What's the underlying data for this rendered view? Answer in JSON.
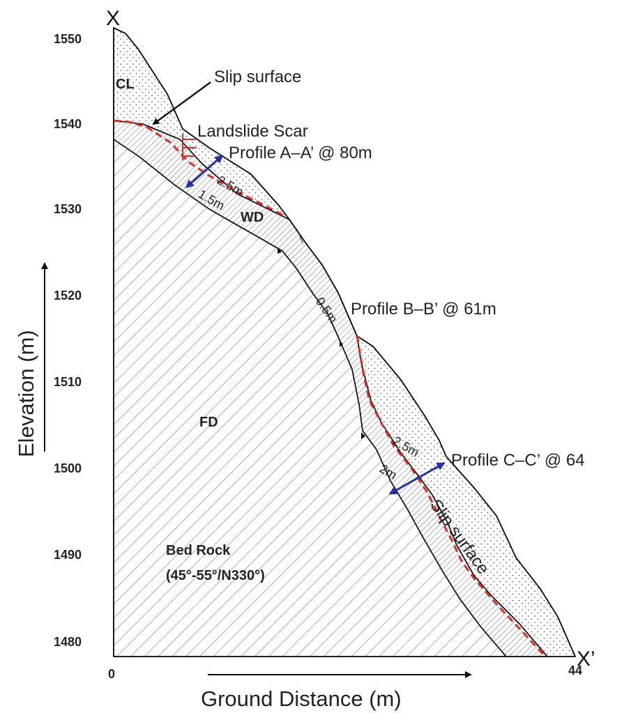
{
  "section": {
    "start_label": "X",
    "end_label": "X’",
    "x_axis_title": "Ground Distance (m)",
    "y_axis_title": "Elevation (m)",
    "x_start_tick": "0",
    "x_end_tick": "44",
    "y_ticks": [
      "1550",
      "1540",
      "1530",
      "1520",
      "1510",
      "1500",
      "1490",
      "1480"
    ]
  },
  "layers": {
    "colluvium": "CL",
    "weathered_zone": "WD",
    "fractured_zone": "FD",
    "bedrock_line1": "Bed Rock",
    "bedrock_line2": "(45°-55°/N330°)"
  },
  "annotations": {
    "slip_surface_top": "Slip surface",
    "landslide_scar": "Landslide Scar",
    "profile_a": "Profile A–A’ @ 80m",
    "profile_b": "Profile B–B’ @ 61m",
    "profile_c": "Profile C–C’ @ 64",
    "slip_surface_lower": "Slip surface"
  },
  "thickness": {
    "a_top": "2.5m",
    "a_bottom": "1.5m",
    "b": "0.5m",
    "c_top": "2.5m",
    "c_bottom": "2m"
  },
  "colors": {
    "slip_line": "#e8281c",
    "thickness_arrow": "#1f2fb0",
    "outline": "#111111",
    "hatch": "#8a8a8a"
  }
}
